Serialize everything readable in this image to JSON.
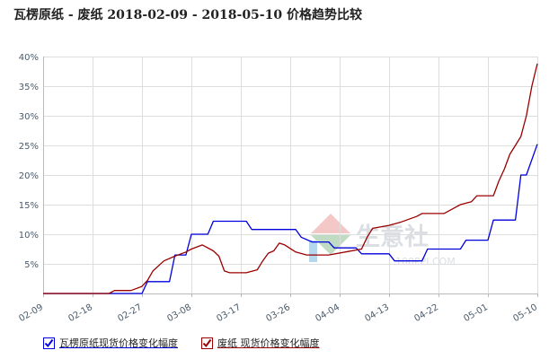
{
  "chart_data": {
    "type": "line",
    "title": "瓦楞原纸 - 废纸 2018-02-09 - 2018-05-10 价格趋势比较",
    "x_start": "2018-02-09",
    "x_end": "2018-05-10",
    "x_ticks": [
      "02-09",
      "02-18",
      "02-27",
      "03-08",
      "03-17",
      "03-26",
      "04-04",
      "04-13",
      "04-22",
      "05-01",
      "05-10"
    ],
    "y_ticks": [
      "5%",
      "10%",
      "15%",
      "20%",
      "25%",
      "30%",
      "35%",
      "40%"
    ],
    "ylim": [
      0,
      40
    ],
    "y_unit": "%",
    "grid": true,
    "legend_placement": "bottom-left",
    "series": [
      {
        "name": "瓦楞原纸现货价格变化幅度",
        "color": "#0000dd",
        "points": [
          [
            "02-09",
            0
          ],
          [
            "02-27",
            0
          ],
          [
            "02-28",
            2
          ],
          [
            "03-04",
            2
          ],
          [
            "03-05",
            6.5
          ],
          [
            "03-07",
            6.5
          ],
          [
            "03-08",
            10
          ],
          [
            "03-11",
            10
          ],
          [
            "03-12",
            12.2
          ],
          [
            "03-18",
            12.2
          ],
          [
            "03-19",
            10.8
          ],
          [
            "03-27",
            10.8
          ],
          [
            "03-28",
            9.5
          ],
          [
            "03-30",
            8.7
          ],
          [
            "04-02",
            8.7
          ],
          [
            "04-03",
            7.7
          ],
          [
            "04-07",
            7.7
          ],
          [
            "04-08",
            6.7
          ],
          [
            "04-13",
            6.7
          ],
          [
            "04-14",
            5.5
          ],
          [
            "04-19",
            5.5
          ],
          [
            "04-20",
            7.5
          ],
          [
            "04-26",
            7.5
          ],
          [
            "04-27",
            9
          ],
          [
            "05-01",
            9
          ],
          [
            "05-02",
            12.4
          ],
          [
            "05-06",
            12.4
          ],
          [
            "05-07",
            20
          ],
          [
            "05-08",
            20
          ],
          [
            "05-10",
            25.2
          ]
        ]
      },
      {
        "name": "废纸 现货价格变化幅度",
        "color": "#990000",
        "points": [
          [
            "02-09",
            0
          ],
          [
            "02-21",
            0
          ],
          [
            "02-22",
            0.5
          ],
          [
            "02-25",
            0.5
          ],
          [
            "02-27",
            1.2
          ],
          [
            "02-28",
            2.2
          ],
          [
            "03-01",
            3.8
          ],
          [
            "03-03",
            5.5
          ],
          [
            "03-05",
            6.3
          ],
          [
            "03-07",
            7
          ],
          [
            "03-08",
            7.5
          ],
          [
            "03-10",
            8.2
          ],
          [
            "03-12",
            7.2
          ],
          [
            "03-13",
            6.3
          ],
          [
            "03-14",
            3.8
          ],
          [
            "03-15",
            3.5
          ],
          [
            "03-18",
            3.5
          ],
          [
            "03-20",
            4
          ],
          [
            "03-21",
            5.5
          ],
          [
            "03-22",
            6.8
          ],
          [
            "03-23",
            7.2
          ],
          [
            "03-24",
            8.5
          ],
          [
            "03-25",
            8.2
          ],
          [
            "03-27",
            7
          ],
          [
            "03-29",
            6.5
          ],
          [
            "04-02",
            6.5
          ],
          [
            "04-05",
            7
          ],
          [
            "04-08",
            7.5
          ],
          [
            "04-09",
            9.5
          ],
          [
            "04-10",
            11
          ],
          [
            "04-13",
            11.5
          ],
          [
            "04-15",
            12
          ],
          [
            "04-18",
            13
          ],
          [
            "04-19",
            13.5
          ],
          [
            "04-23",
            13.5
          ],
          [
            "04-25",
            14.5
          ],
          [
            "04-26",
            15
          ],
          [
            "04-28",
            15.5
          ],
          [
            "04-29",
            16.5
          ],
          [
            "05-02",
            16.5
          ],
          [
            "05-03",
            19
          ],
          [
            "05-04",
            21
          ],
          [
            "05-05",
            23.5
          ],
          [
            "05-06",
            25
          ],
          [
            "05-07",
            26.5
          ],
          [
            "05-08",
            30
          ],
          [
            "05-09",
            35
          ],
          [
            "05-10",
            38.8
          ]
        ]
      }
    ]
  },
  "watermark": {
    "brand_cn": "生意社",
    "brand_url": "100PPI.COM",
    "logo_colors": [
      "#e26060",
      "#4a9a5a",
      "#2f8fcf"
    ]
  },
  "legend": {
    "items": [
      {
        "label": "瓦楞原纸现货价格变化幅度",
        "color": "#0000dd",
        "checked": true
      },
      {
        "label": "废纸 现货价格变化幅度",
        "color": "#990000",
        "checked": true
      }
    ]
  },
  "colors": {
    "grid": "#dddddd",
    "axis": "#bbbbbb",
    "tick_label": "#4a5a6a"
  }
}
